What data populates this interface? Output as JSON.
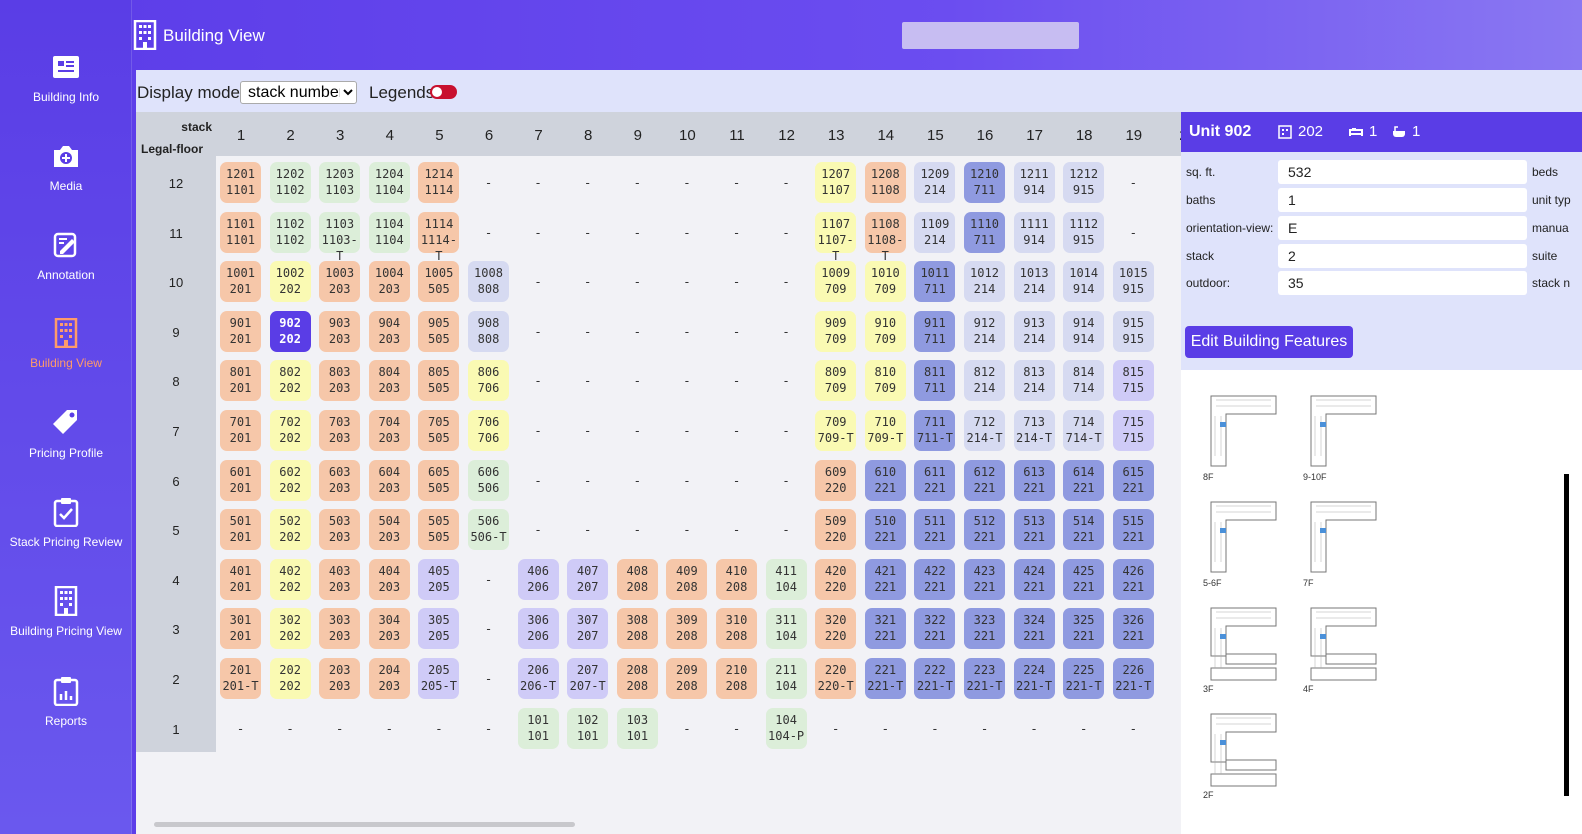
{
  "sidebar": {
    "items": [
      {
        "label": "Building Info",
        "icon": "building-info-icon"
      },
      {
        "label": "Media",
        "icon": "camera-icon"
      },
      {
        "label": "Annotation",
        "icon": "annotation-icon"
      },
      {
        "label": "Building View",
        "icon": "building-icon",
        "active": true
      },
      {
        "label": "Pricing Profile",
        "icon": "tag-icon"
      },
      {
        "label": "Stack Pricing Review",
        "icon": "clipboard-check-icon"
      },
      {
        "label": "Building Pricing View",
        "icon": "building-icon"
      },
      {
        "label": "Reports",
        "icon": "report-icon"
      }
    ]
  },
  "header": {
    "title": "Building View",
    "icon": "building-icon"
  },
  "toolbar": {
    "display_mode_label": "Display mode:",
    "display_mode_value": "stack number",
    "legends_label": "Legends",
    "legends_on": false
  },
  "grid": {
    "stack_header": "stack",
    "floor_header": "Legal-floor",
    "stacks": [
      "1",
      "2",
      "3",
      "4",
      "5",
      "6",
      "7",
      "8",
      "9",
      "10",
      "11",
      "12",
      "13",
      "14",
      "15",
      "16",
      "17",
      "18",
      "19",
      "2"
    ],
    "rows": [
      {
        "floor": "12",
        "cells": [
          [
            "1201",
            "1101",
            "orange"
          ],
          [
            "1202",
            "1102",
            "green"
          ],
          [
            "1203",
            "1103",
            "green"
          ],
          [
            "1204",
            "1104",
            "green"
          ],
          [
            "1214",
            "1114",
            "orange"
          ],
          null,
          null,
          null,
          null,
          null,
          null,
          null,
          [
            "1207",
            "1107",
            "yellow"
          ],
          [
            "1208",
            "1108",
            "orange"
          ],
          [
            "1209",
            "214",
            "gray"
          ],
          [
            "1210",
            "711",
            "blue"
          ],
          [
            "1211",
            "914",
            "gray"
          ],
          [
            "1212",
            "915",
            "gray"
          ],
          null
        ]
      },
      {
        "floor": "11",
        "cells": [
          [
            "1101",
            "1101",
            "orange"
          ],
          [
            "1102",
            "1102",
            "green"
          ],
          [
            "1103",
            "1103-T",
            "green"
          ],
          [
            "1104",
            "1104",
            "green"
          ],
          [
            "1114",
            "1114-T",
            "orange"
          ],
          null,
          null,
          null,
          null,
          null,
          null,
          null,
          [
            "1107",
            "1107-T",
            "yellow"
          ],
          [
            "1108",
            "1108-T",
            "orange"
          ],
          [
            "1109",
            "214",
            "gray"
          ],
          [
            "1110",
            "711",
            "blue"
          ],
          [
            "1111",
            "914",
            "gray"
          ],
          [
            "1112",
            "915",
            "gray"
          ],
          null
        ]
      },
      {
        "floor": "10",
        "cells": [
          [
            "1001",
            "201",
            "orange"
          ],
          [
            "1002",
            "202",
            "yellow"
          ],
          [
            "1003",
            "203",
            "orange"
          ],
          [
            "1004",
            "203",
            "orange"
          ],
          [
            "1005",
            "505",
            "orange"
          ],
          [
            "1008",
            "808",
            "gray"
          ],
          null,
          null,
          null,
          null,
          null,
          null,
          [
            "1009",
            "709",
            "yellow"
          ],
          [
            "1010",
            "709",
            "yellow"
          ],
          [
            "1011",
            "711",
            "blue"
          ],
          [
            "1012",
            "214",
            "gray"
          ],
          [
            "1013",
            "214",
            "gray"
          ],
          [
            "1014",
            "914",
            "gray"
          ],
          [
            "1015",
            "915",
            "gray"
          ]
        ]
      },
      {
        "floor": "9",
        "cells": [
          [
            "901",
            "201",
            "orange"
          ],
          [
            "902",
            "202",
            "sel"
          ],
          [
            "903",
            "203",
            "orange"
          ],
          [
            "904",
            "203",
            "orange"
          ],
          [
            "905",
            "505",
            "orange"
          ],
          [
            "908",
            "808",
            "gray"
          ],
          null,
          null,
          null,
          null,
          null,
          null,
          [
            "909",
            "709",
            "yellow"
          ],
          [
            "910",
            "709",
            "yellow"
          ],
          [
            "911",
            "711",
            "blue"
          ],
          [
            "912",
            "214",
            "gray"
          ],
          [
            "913",
            "214",
            "gray"
          ],
          [
            "914",
            "914",
            "gray"
          ],
          [
            "915",
            "915",
            "gray"
          ]
        ]
      },
      {
        "floor": "8",
        "cells": [
          [
            "801",
            "201",
            "orange"
          ],
          [
            "802",
            "202",
            "yellow"
          ],
          [
            "803",
            "203",
            "orange"
          ],
          [
            "804",
            "203",
            "orange"
          ],
          [
            "805",
            "505",
            "orange"
          ],
          [
            "806",
            "706",
            "yellow"
          ],
          null,
          null,
          null,
          null,
          null,
          null,
          [
            "809",
            "709",
            "yellow"
          ],
          [
            "810",
            "709",
            "yellow"
          ],
          [
            "811",
            "711",
            "blue"
          ],
          [
            "812",
            "214",
            "gray"
          ],
          [
            "813",
            "214",
            "gray"
          ],
          [
            "814",
            "714",
            "gray"
          ],
          [
            "815",
            "715",
            "lav"
          ]
        ]
      },
      {
        "floor": "7",
        "cells": [
          [
            "701",
            "201",
            "orange"
          ],
          [
            "702",
            "202",
            "yellow"
          ],
          [
            "703",
            "203",
            "orange"
          ],
          [
            "704",
            "203",
            "orange"
          ],
          [
            "705",
            "505",
            "orange"
          ],
          [
            "706",
            "706",
            "yellow"
          ],
          null,
          null,
          null,
          null,
          null,
          null,
          [
            "709",
            "709-T",
            "yellow"
          ],
          [
            "710",
            "709-T",
            "yellow"
          ],
          [
            "711",
            "711-T",
            "blue"
          ],
          [
            "712",
            "214-T",
            "gray"
          ],
          [
            "713",
            "214-T",
            "gray"
          ],
          [
            "714",
            "714-T",
            "gray"
          ],
          [
            "715",
            "715",
            "lav"
          ]
        ]
      },
      {
        "floor": "6",
        "cells": [
          [
            "601",
            "201",
            "orange"
          ],
          [
            "602",
            "202",
            "yellow"
          ],
          [
            "603",
            "203",
            "orange"
          ],
          [
            "604",
            "203",
            "orange"
          ],
          [
            "605",
            "505",
            "orange"
          ],
          [
            "606",
            "506",
            "green"
          ],
          null,
          null,
          null,
          null,
          null,
          null,
          [
            "609",
            "220",
            "orange"
          ],
          [
            "610",
            "221",
            "blue"
          ],
          [
            "611",
            "221",
            "blue"
          ],
          [
            "612",
            "221",
            "blue"
          ],
          [
            "613",
            "221",
            "blue"
          ],
          [
            "614",
            "221",
            "blue"
          ],
          [
            "615",
            "221",
            "blue"
          ]
        ]
      },
      {
        "floor": "5",
        "cells": [
          [
            "501",
            "201",
            "orange"
          ],
          [
            "502",
            "202",
            "yellow"
          ],
          [
            "503",
            "203",
            "orange"
          ],
          [
            "504",
            "203",
            "orange"
          ],
          [
            "505",
            "505",
            "orange"
          ],
          [
            "506",
            "506-T",
            "green"
          ],
          null,
          null,
          null,
          null,
          null,
          null,
          [
            "509",
            "220",
            "orange"
          ],
          [
            "510",
            "221",
            "blue"
          ],
          [
            "511",
            "221",
            "blue"
          ],
          [
            "512",
            "221",
            "blue"
          ],
          [
            "513",
            "221",
            "blue"
          ],
          [
            "514",
            "221",
            "blue"
          ],
          [
            "515",
            "221",
            "blue"
          ]
        ]
      },
      {
        "floor": "4",
        "cells": [
          [
            "401",
            "201",
            "orange"
          ],
          [
            "402",
            "202",
            "yellow"
          ],
          [
            "403",
            "203",
            "orange"
          ],
          [
            "404",
            "203",
            "orange"
          ],
          [
            "405",
            "205",
            "lav"
          ],
          null,
          [
            "406",
            "206",
            "lav"
          ],
          [
            "407",
            "207",
            "lav"
          ],
          [
            "408",
            "208",
            "orange"
          ],
          [
            "409",
            "208",
            "orange"
          ],
          [
            "410",
            "208",
            "orange"
          ],
          [
            "411",
            "104",
            "green"
          ],
          [
            "420",
            "220",
            "orange"
          ],
          [
            "421",
            "221",
            "blue"
          ],
          [
            "422",
            "221",
            "blue"
          ],
          [
            "423",
            "221",
            "blue"
          ],
          [
            "424",
            "221",
            "blue"
          ],
          [
            "425",
            "221",
            "blue"
          ],
          [
            "426",
            "221",
            "blue"
          ]
        ]
      },
      {
        "floor": "3",
        "cells": [
          [
            "301",
            "201",
            "orange"
          ],
          [
            "302",
            "202",
            "yellow"
          ],
          [
            "303",
            "203",
            "orange"
          ],
          [
            "304",
            "203",
            "orange"
          ],
          [
            "305",
            "205",
            "lav"
          ],
          null,
          [
            "306",
            "206",
            "lav"
          ],
          [
            "307",
            "207",
            "lav"
          ],
          [
            "308",
            "208",
            "orange"
          ],
          [
            "309",
            "208",
            "orange"
          ],
          [
            "310",
            "208",
            "orange"
          ],
          [
            "311",
            "104",
            "green"
          ],
          [
            "320",
            "220",
            "orange"
          ],
          [
            "321",
            "221",
            "blue"
          ],
          [
            "322",
            "221",
            "blue"
          ],
          [
            "323",
            "221",
            "blue"
          ],
          [
            "324",
            "221",
            "blue"
          ],
          [
            "325",
            "221",
            "blue"
          ],
          [
            "326",
            "221",
            "blue"
          ]
        ]
      },
      {
        "floor": "2",
        "cells": [
          [
            "201",
            "201-T",
            "orange"
          ],
          [
            "202",
            "202",
            "yellow"
          ],
          [
            "203",
            "203",
            "orange"
          ],
          [
            "204",
            "203",
            "orange"
          ],
          [
            "205",
            "205-T",
            "lav"
          ],
          null,
          [
            "206",
            "206-T",
            "lav"
          ],
          [
            "207",
            "207-T",
            "lav"
          ],
          [
            "208",
            "208",
            "orange"
          ],
          [
            "209",
            "208",
            "orange"
          ],
          [
            "210",
            "208",
            "orange"
          ],
          [
            "211",
            "104",
            "green"
          ],
          [
            "220",
            "220-T",
            "orange"
          ],
          [
            "221",
            "221-T",
            "blue"
          ],
          [
            "222",
            "221-T",
            "blue"
          ],
          [
            "223",
            "221-T",
            "blue"
          ],
          [
            "224",
            "221-T",
            "blue"
          ],
          [
            "225",
            "221-T",
            "blue"
          ],
          [
            "226",
            "221-T",
            "blue"
          ]
        ]
      },
      {
        "floor": "1",
        "cells": [
          null,
          null,
          null,
          null,
          null,
          null,
          [
            "101",
            "101",
            "green"
          ],
          [
            "102",
            "101",
            "green"
          ],
          [
            "103",
            "101",
            "green"
          ],
          null,
          null,
          [
            "104",
            "104-P",
            "green"
          ],
          null,
          null,
          null,
          null,
          null,
          null,
          null
        ]
      }
    ],
    "partial_col20": [
      {
        "row": 4,
        "top": "4",
        "bottom": ""
      },
      {
        "row": 4,
        "top": "6",
        "bottom": "5"
      }
    ]
  },
  "detail": {
    "title": "Unit 902",
    "stack_meta": "202",
    "beds_meta": "1",
    "baths_meta": "1",
    "fields": [
      {
        "label": "sq. ft.",
        "value": "532",
        "right": "beds"
      },
      {
        "label": "baths",
        "value": "1",
        "right": "unit typ"
      },
      {
        "label": "orientation-view:",
        "value": "E",
        "right": "manua"
      },
      {
        "label": "stack",
        "value": "2",
        "right": "suite"
      },
      {
        "label": "outdoor:",
        "value": "35",
        "right": "stack n"
      }
    ],
    "edit_button": "Edit Building Features",
    "floorplans": [
      "8F",
      "9-10F",
      "5-6F",
      "7F",
      "3F",
      "4F",
      "2F"
    ]
  },
  "colors": {
    "orange": "#f6c7a9",
    "yellow": "#fafab3",
    "green": "#dceed9",
    "gray": "#d6daf1",
    "blue": "#8f9ae0",
    "lavender": "#cfcbf7",
    "selected": "#5a3de6",
    "accent": "#5a3de6",
    "toggle": "#c8102e"
  }
}
